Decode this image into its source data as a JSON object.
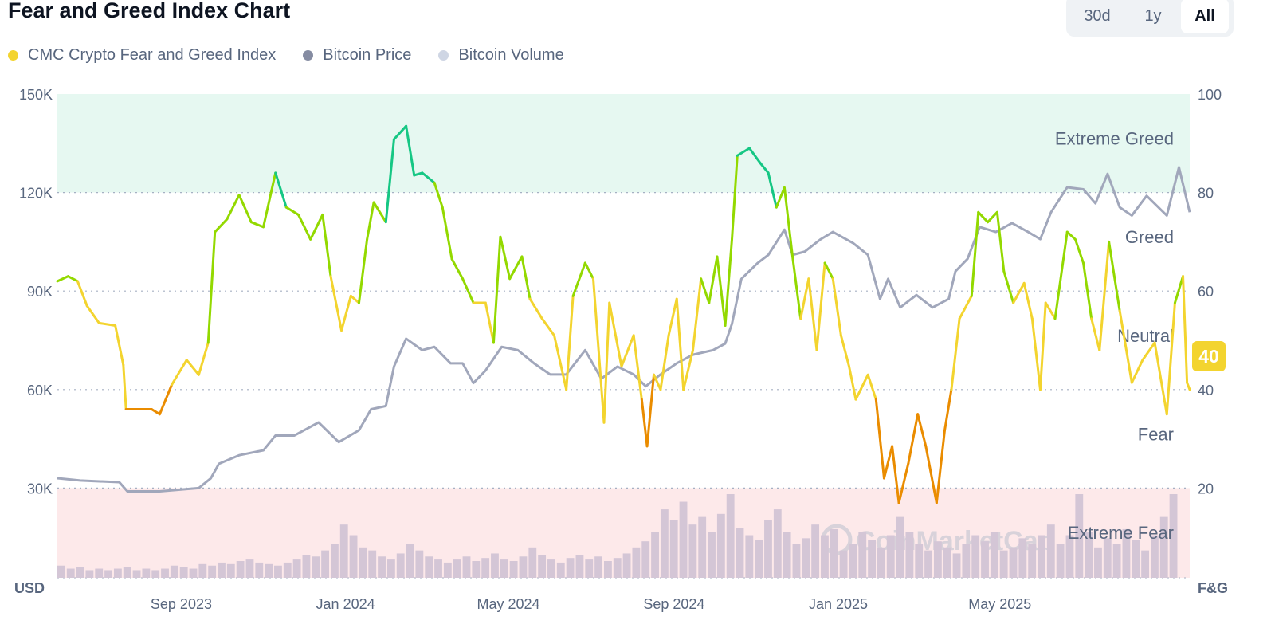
{
  "title": "Fear and Greed Index Chart",
  "range_buttons": [
    {
      "label": "30d"
    },
    {
      "label": "1y"
    },
    {
      "label": "All",
      "active": true
    }
  ],
  "watermark": "CoinMarketCap",
  "current_badge": "40",
  "colors": {
    "extreme_fear": "#ea3943",
    "fear": "#ea8c00",
    "neutral": "#f3d42f",
    "greed": "#93d900",
    "extreme_greed": "#16c784",
    "price": "#a1a7bb",
    "volume": "#d4c6d6",
    "band_greed": "#e6f8f1",
    "band_fear": "#fde9ea"
  },
  "chart_data": {
    "type": "line",
    "title": "Fear and Greed Index Chart",
    "x_unit": "days since 2023-06-01",
    "x_ticks": [
      {
        "label": "Sep 2023",
        "day": 92
      },
      {
        "label": "Jan 2024",
        "day": 214
      },
      {
        "label": "May 2024",
        "day": 335
      },
      {
        "label": "Sep 2024",
        "day": 458
      },
      {
        "label": "Jan 2025",
        "day": 580
      },
      {
        "label": "May 2025",
        "day": 700
      }
    ],
    "x_range": [
      0,
      841
    ],
    "left_axis": {
      "label": "USD",
      "range": [
        0,
        150000
      ],
      "ticks": [
        "30K",
        "60K",
        "90K",
        "120K",
        "150K"
      ],
      "tick_values": [
        30000,
        60000,
        90000,
        120000,
        150000
      ]
    },
    "right_axis": {
      "label": "F&G",
      "range": [
        0,
        100
      ],
      "ticks": [
        "20",
        "40",
        "60",
        "80",
        "100"
      ],
      "tick_values": [
        20,
        40,
        60,
        80,
        100
      ]
    },
    "zones": [
      {
        "label": "Extreme Greed",
        "from": 80,
        "to": 100,
        "label_at": 91
      },
      {
        "label": "Greed",
        "from": 60,
        "to": 80,
        "label_at": 71
      },
      {
        "label": "Neutral",
        "from": 40,
        "to": 60,
        "label_at": 51
      },
      {
        "label": "Fear",
        "from": 20,
        "to": 40,
        "label_at": 31
      },
      {
        "label": "Extreme Fear",
        "from": 0,
        "to": 20,
        "label_at": 11
      }
    ],
    "legend": [
      {
        "name": "CMC Crypto Fear and Greed Index",
        "color": "#f3d42f"
      },
      {
        "name": "Bitcoin Price",
        "color": "#858ca2"
      },
      {
        "name": "Bitcoin Volume",
        "color": "#cfd6e4"
      }
    ],
    "series": [
      {
        "name": "CMC Crypto Fear and Greed Index",
        "axis": "right",
        "points": [
          [
            0,
            62
          ],
          [
            8,
            63
          ],
          [
            15,
            62
          ],
          [
            22,
            57
          ],
          [
            31,
            53.5
          ],
          [
            43,
            53
          ],
          [
            49,
            45
          ],
          [
            51,
            36
          ],
          [
            58,
            36
          ],
          [
            70,
            36
          ],
          [
            76,
            35
          ],
          [
            85,
            41
          ],
          [
            96,
            46
          ],
          [
            105,
            43
          ],
          [
            112,
            49.5
          ],
          [
            117,
            72
          ],
          [
            126,
            74.6
          ],
          [
            135,
            79.5
          ],
          [
            144,
            74
          ],
          [
            153,
            73
          ],
          [
            162,
            84
          ],
          [
            170,
            77
          ],
          [
            179,
            75.5
          ],
          [
            188,
            70.5
          ],
          [
            197,
            75.5
          ],
          [
            203,
            63
          ],
          [
            211,
            52
          ],
          [
            218,
            59
          ],
          [
            224,
            57.6
          ],
          [
            230,
            70.5
          ],
          [
            235,
            78
          ],
          [
            244,
            74
          ],
          [
            250,
            90.8
          ],
          [
            259,
            93.5
          ],
          [
            265,
            83.5
          ],
          [
            271,
            84
          ],
          [
            280,
            82
          ],
          [
            286,
            77
          ],
          [
            293,
            66.5
          ],
          [
            301,
            62.5
          ],
          [
            309,
            57.6
          ],
          [
            318,
            57.6
          ],
          [
            324,
            49.5
          ],
          [
            329,
            71
          ],
          [
            336,
            62.5
          ],
          [
            345,
            67
          ],
          [
            351,
            58.4
          ],
          [
            360,
            54.4
          ],
          [
            369,
            51
          ],
          [
            378,
            40
          ],
          [
            383,
            59
          ],
          [
            392,
            65.7
          ],
          [
            398,
            62.5
          ],
          [
            406,
            33.3
          ],
          [
            410,
            57.6
          ],
          [
            419,
            44.7
          ],
          [
            428,
            51
          ],
          [
            434,
            38
          ],
          [
            438,
            28.5
          ],
          [
            443,
            43
          ],
          [
            448,
            40
          ],
          [
            454,
            51
          ],
          [
            460,
            58.4
          ],
          [
            465,
            40
          ],
          [
            472,
            48
          ],
          [
            478,
            62.5
          ],
          [
            484,
            57.6
          ],
          [
            490,
            67
          ],
          [
            496,
            53
          ],
          [
            501,
            70.5
          ],
          [
            505,
            87.5
          ],
          [
            514,
            89
          ],
          [
            522,
            86
          ],
          [
            528,
            84
          ],
          [
            534,
            77
          ],
          [
            540,
            81
          ],
          [
            546,
            67
          ],
          [
            552,
            54.4
          ],
          [
            558,
            62.5
          ],
          [
            564,
            48
          ],
          [
            570,
            65.7
          ],
          [
            576,
            62.5
          ],
          [
            582,
            51
          ],
          [
            588,
            44.7
          ],
          [
            593,
            38
          ],
          [
            602,
            43
          ],
          [
            608,
            38
          ],
          [
            614,
            22
          ],
          [
            620,
            28.5
          ],
          [
            625,
            17
          ],
          [
            632,
            25
          ],
          [
            639,
            35
          ],
          [
            645,
            28.5
          ],
          [
            653,
            17
          ],
          [
            659,
            31.7
          ],
          [
            664,
            40
          ],
          [
            670,
            54.4
          ],
          [
            679,
            59
          ],
          [
            684,
            76
          ],
          [
            691,
            74
          ],
          [
            698,
            76
          ],
          [
            703,
            64
          ],
          [
            710,
            57.6
          ],
          [
            718,
            61.6
          ],
          [
            724,
            54.4
          ],
          [
            730,
            40
          ],
          [
            734,
            57.6
          ],
          [
            741,
            54.4
          ],
          [
            750,
            72
          ],
          [
            756,
            70.5
          ],
          [
            762,
            65.7
          ],
          [
            768,
            54.4
          ],
          [
            774,
            48
          ],
          [
            781,
            70
          ],
          [
            789,
            56
          ],
          [
            798,
            41.4
          ],
          [
            806,
            46
          ],
          [
            815,
            49.5
          ],
          [
            824,
            35
          ],
          [
            830,
            57.6
          ],
          [
            836,
            63
          ],
          [
            839,
            41.4
          ],
          [
            841,
            40
          ]
        ]
      },
      {
        "name": "Bitcoin Price",
        "axis": "left",
        "unit": "USD thousands",
        "points": [
          [
            0,
            33
          ],
          [
            17,
            32.3
          ],
          [
            46,
            31.8
          ],
          [
            52,
            29
          ],
          [
            76,
            29
          ],
          [
            105,
            30
          ],
          [
            114,
            33
          ],
          [
            120,
            37.4
          ],
          [
            135,
            40
          ],
          [
            153,
            41.5
          ],
          [
            162,
            46
          ],
          [
            176,
            46
          ],
          [
            194,
            50
          ],
          [
            209,
            44
          ],
          [
            224,
            47.6
          ],
          [
            233,
            54
          ],
          [
            244,
            55
          ],
          [
            250,
            67
          ],
          [
            259,
            75.5
          ],
          [
            271,
            72
          ],
          [
            280,
            73
          ],
          [
            292,
            68
          ],
          [
            301,
            68
          ],
          [
            309,
            62
          ],
          [
            318,
            65.8
          ],
          [
            330,
            73
          ],
          [
            342,
            72
          ],
          [
            354,
            68
          ],
          [
            366,
            64.6
          ],
          [
            378,
            64.6
          ],
          [
            392,
            72
          ],
          [
            404,
            63.3
          ],
          [
            416,
            67
          ],
          [
            428,
            64.6
          ],
          [
            437,
            61
          ],
          [
            448,
            64.6
          ],
          [
            460,
            68
          ],
          [
            472,
            70.6
          ],
          [
            487,
            72
          ],
          [
            496,
            74
          ],
          [
            501,
            80
          ],
          [
            508,
            93.7
          ],
          [
            520,
            98.5
          ],
          [
            528,
            101
          ],
          [
            540,
            108.7
          ],
          [
            546,
            101
          ],
          [
            555,
            102
          ],
          [
            567,
            105.8
          ],
          [
            576,
            108
          ],
          [
            591,
            104.6
          ],
          [
            602,
            101
          ],
          [
            611,
            87.6
          ],
          [
            617,
            93.7
          ],
          [
            626,
            85
          ],
          [
            638,
            88.8
          ],
          [
            650,
            85
          ],
          [
            662,
            87.6
          ],
          [
            667,
            96
          ],
          [
            676,
            99.8
          ],
          [
            685,
            109.5
          ],
          [
            697,
            108
          ],
          [
            709,
            110.7
          ],
          [
            721,
            108
          ],
          [
            730,
            105.8
          ],
          [
            738,
            114
          ],
          [
            750,
            121.6
          ],
          [
            762,
            121
          ],
          [
            771,
            116.7
          ],
          [
            780,
            125.7
          ],
          [
            789,
            115.5
          ],
          [
            798,
            113
          ],
          [
            809,
            119
          ],
          [
            824,
            113
          ],
          [
            833,
            127.7
          ],
          [
            841,
            114
          ]
        ]
      },
      {
        "name": "Bitcoin Volume",
        "axis": "hidden",
        "unit": "relative",
        "bin_days": 7,
        "values": [
          8,
          6,
          7,
          5,
          6,
          5,
          6,
          7,
          5,
          6,
          5,
          6,
          8,
          7,
          6,
          9,
          8,
          10,
          9,
          11,
          12,
          10,
          9,
          8,
          10,
          12,
          15,
          14,
          18,
          22,
          35,
          28,
          20,
          18,
          14,
          12,
          16,
          22,
          18,
          14,
          12,
          10,
          12,
          14,
          11,
          13,
          16,
          12,
          11,
          14,
          20,
          15,
          12,
          10,
          13,
          15,
          12,
          14,
          11,
          13,
          16,
          20,
          24,
          30,
          45,
          38,
          50,
          35,
          40,
          30,
          42,
          55,
          33,
          28,
          25,
          38,
          45,
          30,
          22,
          26,
          35,
          28,
          32,
          18,
          22,
          30,
          25,
          20,
          28,
          40,
          30,
          22,
          18,
          24,
          20,
          16,
          22,
          28,
          24,
          30,
          18,
          20,
          26,
          22,
          28,
          35,
          22,
          28,
          55,
          30,
          20,
          26,
          22,
          32,
          25,
          18,
          28,
          40,
          55
        ]
      }
    ]
  }
}
